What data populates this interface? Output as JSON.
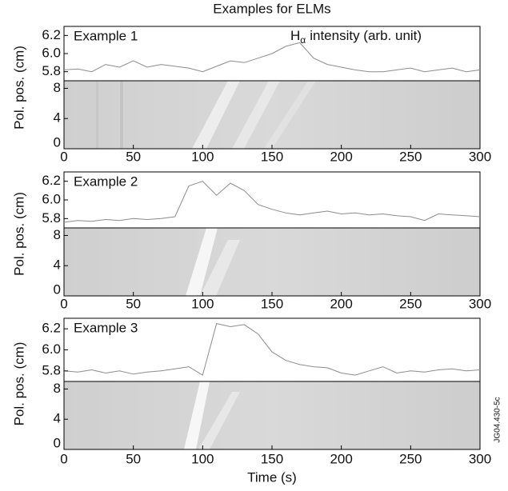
{
  "title": "Examples for ELMs",
  "xlabel": "Time (s)",
  "figure_id": "JG04.430-5c",
  "chart_data": [
    {
      "type": "line",
      "label": "Example 1",
      "annotation": {
        "symbol": "H",
        "subscript": "α",
        "text": "intensity (arb. unit)"
      },
      "color": "#8c8c8c",
      "x": [
        0,
        10,
        20,
        30,
        40,
        50,
        60,
        70,
        80,
        90,
        100,
        110,
        120,
        130,
        140,
        150,
        160,
        170,
        180,
        190,
        200,
        210,
        220,
        230,
        240,
        250,
        260,
        270,
        280,
        290,
        300
      ],
      "values": [
        5.82,
        5.83,
        5.8,
        5.88,
        5.85,
        5.92,
        5.85,
        5.88,
        5.86,
        5.84,
        5.8,
        5.86,
        5.92,
        5.9,
        5.95,
        6.0,
        6.08,
        6.12,
        5.95,
        5.88,
        5.85,
        5.82,
        5.8,
        5.8,
        5.82,
        5.84,
        5.8,
        5.82,
        5.84,
        5.8,
        5.82
      ],
      "xlim": [
        0,
        300
      ],
      "ylim": [
        5.7,
        6.3
      ],
      "yticks": [
        5.8,
        {
          "value": 6,
          "label": "6.0"
        },
        6.2
      ]
    },
    {
      "type": "image",
      "ylabel": "Pol. pos. (cm)",
      "xlim": [
        0,
        300
      ],
      "xticks": [
        0,
        50,
        100,
        150,
        200,
        250,
        300
      ],
      "ylim": [
        0,
        9
      ],
      "yticks": [
        0,
        4,
        8
      ]
    },
    {
      "type": "line",
      "label": "Example 2",
      "color": "#8c8c8c",
      "x": [
        0,
        10,
        20,
        30,
        40,
        50,
        60,
        70,
        80,
        90,
        100,
        110,
        120,
        130,
        140,
        150,
        160,
        170,
        180,
        190,
        200,
        210,
        220,
        230,
        240,
        250,
        260,
        270,
        280,
        290,
        300
      ],
      "values": [
        5.76,
        5.78,
        5.77,
        5.79,
        5.78,
        5.8,
        5.79,
        5.8,
        5.82,
        6.15,
        6.2,
        6.05,
        6.18,
        6.1,
        5.95,
        5.9,
        5.86,
        5.84,
        5.86,
        5.88,
        5.85,
        5.86,
        5.84,
        5.85,
        5.83,
        5.82,
        5.78,
        5.85,
        5.84,
        5.83,
        5.82
      ],
      "xlim": [
        0,
        300
      ],
      "ylim": [
        5.7,
        6.3
      ],
      "yticks": [
        5.8,
        {
          "value": 6,
          "label": "6.0"
        },
        6.2
      ]
    },
    {
      "type": "image",
      "ylabel": "Pol. pos. (cm)",
      "xlim": [
        0,
        300
      ],
      "xticks": [
        0,
        50,
        100,
        150,
        200,
        250,
        300
      ],
      "ylim": [
        0,
        9
      ],
      "yticks": [
        0,
        4,
        8
      ]
    },
    {
      "type": "line",
      "label": "Example 3",
      "color": "#8c8c8c",
      "x": [
        0,
        10,
        20,
        30,
        40,
        50,
        60,
        70,
        80,
        90,
        100,
        110,
        120,
        130,
        140,
        150,
        160,
        170,
        180,
        190,
        200,
        210,
        220,
        230,
        240,
        250,
        260,
        270,
        280,
        290,
        300
      ],
      "values": [
        5.8,
        5.79,
        5.81,
        5.78,
        5.8,
        5.77,
        5.79,
        5.8,
        5.82,
        5.84,
        5.76,
        6.25,
        6.22,
        6.24,
        6.15,
        5.98,
        5.9,
        5.86,
        5.84,
        5.83,
        5.78,
        5.76,
        5.8,
        5.84,
        5.78,
        5.8,
        5.79,
        5.81,
        5.82,
        5.8,
        5.81
      ],
      "xlim": [
        0,
        300
      ],
      "ylim": [
        5.7,
        6.3
      ],
      "yticks": [
        5.8,
        {
          "value": 6,
          "label": "6.0"
        },
        6.2
      ]
    },
    {
      "type": "image",
      "ylabel": "Pol. pos. (cm)",
      "xlim": [
        0,
        300
      ],
      "xticks": [
        0,
        50,
        100,
        150,
        200,
        250,
        300
      ],
      "ylim": [
        0,
        9
      ],
      "yticks": [
        0,
        4,
        8
      ]
    }
  ]
}
